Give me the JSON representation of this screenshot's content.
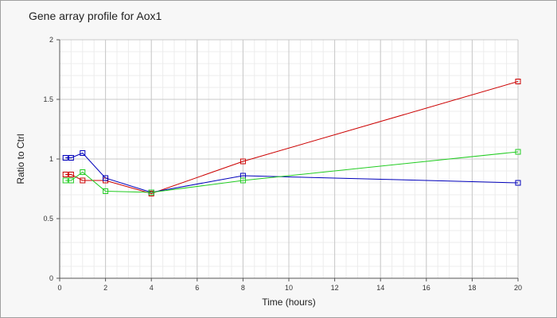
{
  "chart_data": {
    "type": "line",
    "title": "Gene array profile for Aox1",
    "xlabel": "Time (hours)",
    "ylabel": "Ratio to Ctrl",
    "xlim": [
      0,
      20
    ],
    "ylim": [
      0,
      2
    ],
    "x_ticks": [
      "0",
      "2",
      "4",
      "6",
      "8",
      "10",
      "12",
      "14",
      "16",
      "18",
      "20"
    ],
    "y_ticks": [
      "0",
      "0.5",
      "1",
      "1.5",
      "2"
    ],
    "grid": true,
    "legend": "none",
    "marker": "square",
    "series": [
      {
        "color": "#cc0000",
        "points": [
          [
            0.25,
            0.87
          ],
          [
            0.5,
            0.87
          ],
          [
            1,
            0.82
          ],
          [
            2,
            0.82
          ],
          [
            4,
            0.71
          ],
          [
            8,
            0.98
          ],
          [
            20,
            1.65
          ]
        ]
      },
      {
        "color": "#0000bb",
        "points": [
          [
            0.25,
            1.01
          ],
          [
            0.5,
            1.01
          ],
          [
            1,
            1.05
          ],
          [
            2,
            0.84
          ],
          [
            4,
            0.72
          ],
          [
            8,
            0.86
          ],
          [
            20,
            0.8
          ]
        ]
      },
      {
        "color": "#22cc22",
        "points": [
          [
            0.25,
            0.82
          ],
          [
            0.5,
            0.82
          ],
          [
            1,
            0.89
          ],
          [
            2,
            0.73
          ],
          [
            4,
            0.72
          ],
          [
            8,
            0.82
          ],
          [
            20,
            1.06
          ]
        ]
      }
    ]
  }
}
